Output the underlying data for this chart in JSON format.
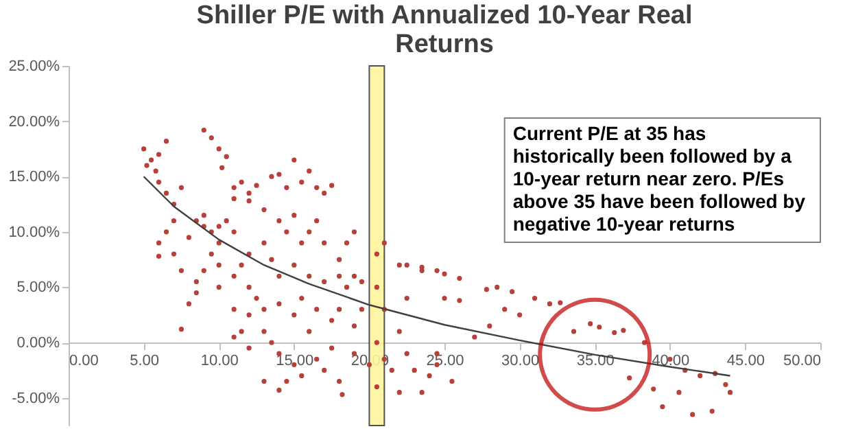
{
  "chart_data": {
    "type": "scatter",
    "title": "Shiller P/E with Annualized 10-Year Real Returns",
    "xlim": [
      0,
      50
    ],
    "xticks": [
      {
        "value": 0,
        "label": "0.00"
      },
      {
        "value": 5,
        "label": "5.00"
      },
      {
        "value": 10,
        "label": "10.00"
      },
      {
        "value": 15,
        "label": "15.00"
      },
      {
        "value": 20,
        "label": "20.00"
      },
      {
        "value": 25,
        "label": "25.00"
      },
      {
        "value": 30,
        "label": "30.00"
      },
      {
        "value": 35,
        "label": "35.00"
      },
      {
        "value": 40,
        "label": "40.00"
      },
      {
        "value": 45,
        "label": "45.00"
      },
      {
        "value": 50,
        "label": "50.00"
      }
    ],
    "ylim": [
      -7.5,
      25
    ],
    "yticks": [
      {
        "value": -5,
        "label": "-5.00%"
      },
      {
        "value": 0,
        "label": "0.00%"
      },
      {
        "value": 5,
        "label": "5.00%"
      },
      {
        "value": 10,
        "label": "10.00%"
      },
      {
        "value": 15,
        "label": "15.00%"
      },
      {
        "value": 20,
        "label": "20.00%"
      },
      {
        "value": 25,
        "label": "25.00%"
      }
    ],
    "grid": false,
    "series": [
      {
        "type": "scatter",
        "marker": "circle",
        "color": "#b5413a",
        "x": [
          5,
          5.2,
          5.5,
          5.8,
          6,
          6.5,
          6,
          6.5,
          7,
          7.5,
          7,
          6.5,
          6,
          6,
          7,
          7.5,
          7.5,
          8,
          8.5,
          8,
          8.5,
          9,
          9,
          9.5,
          10,
          10,
          10.5,
          11,
          9.5,
          10,
          9,
          8.5,
          10,
          11,
          11.5,
          12,
          12,
          11,
          12,
          12.5,
          13,
          11.5,
          11,
          12,
          13,
          9,
          9.5,
          10,
          10.5,
          10.2,
          11,
          11.5,
          12,
          12.5,
          12,
          11,
          13,
          13.5,
          14,
          14.5,
          15,
          15.5,
          16,
          16.5,
          17,
          17.5,
          14,
          14.5,
          15,
          15.5,
          16,
          16.5,
          17,
          13,
          13.5,
          14,
          15,
          16,
          17,
          18,
          18.5,
          19,
          19.5,
          18,
          18.5,
          19,
          18,
          17.5,
          19,
          19.5,
          14,
          15,
          15.5,
          16,
          16.5,
          13.5,
          14,
          15,
          14.5,
          13,
          14,
          15.5,
          16.5,
          17,
          18,
          18.2,
          17.5,
          19,
          20,
          20.5,
          21,
          20.5,
          21,
          20.5,
          21,
          20.5,
          21.5,
          22,
          22.5,
          22,
          22.5,
          23,
          22,
          23.5,
          24,
          24.5,
          22.5,
          23.5,
          24.5,
          25,
          26,
          27.8,
          28.5,
          29.5,
          25,
          26,
          27,
          28,
          29,
          30,
          31,
          32,
          32.7,
          24.5,
          25.5,
          23.5,
          33.6,
          34.7,
          35.3,
          36.3,
          36.9,
          38.3,
          37.3,
          38.9,
          40.6,
          41.5,
          42.8,
          43.7,
          44,
          41,
          42,
          43,
          40,
          39.5
        ],
        "values": [
          17.5,
          16,
          16.5,
          15.5,
          17,
          18.2,
          14.5,
          13.5,
          12.5,
          14,
          11,
          10,
          9,
          7.8,
          8,
          6.5,
          1.2,
          3.5,
          4.5,
          9.5,
          11,
          10.5,
          11.5,
          10,
          10.5,
          9,
          11,
          10,
          8,
          7,
          6.5,
          5.5,
          5,
          6,
          7,
          8,
          5,
          3,
          2.5,
          4,
          3,
          1,
          0.5,
          -0.5,
          1,
          19.2,
          18.5,
          17.5,
          16.8,
          15.8,
          14,
          14.5,
          13.5,
          14.2,
          12.8,
          13,
          12,
          15,
          15.2,
          14,
          16.5,
          14.5,
          15.5,
          14,
          13.5,
          14.2,
          11,
          10,
          11.5,
          9,
          10,
          11,
          9,
          9,
          7.5,
          6,
          7,
          6,
          5.5,
          6,
          5,
          6,
          5.5,
          7.5,
          9,
          10,
          3,
          2,
          1.5,
          3,
          3.5,
          2.5,
          4,
          1,
          3,
          0,
          -1,
          -2,
          -3.5,
          -3.5,
          -4.3,
          -3,
          -1.5,
          -2.5,
          -3.5,
          -4.7,
          -0.5,
          -1,
          -2,
          8,
          9,
          5,
          3,
          0,
          -1.5,
          -4,
          -2.5,
          7,
          4,
          1,
          -1,
          -2.5,
          -4.5,
          6.5,
          -3,
          -1,
          7,
          6.8,
          6.5,
          6.2,
          5.8,
          4.8,
          5,
          4.6,
          4,
          3.8,
          0.5,
          1.5,
          3,
          2.5,
          4,
          3.5,
          3.6,
          -2,
          -3.5,
          -4.5,
          1.0,
          1.7,
          1.4,
          0.9,
          1.1,
          0.0,
          -3.2,
          -4.2,
          -4.5,
          -6.5,
          -6.2,
          -3.8,
          -4.5,
          -2.5,
          -3,
          -2.8,
          -1.5,
          -5.8
        ]
      },
      {
        "type": "line",
        "color": "#404040",
        "x": [
          5,
          7,
          10,
          13,
          16,
          20,
          25,
          30,
          35,
          40,
          44
        ],
        "values": [
          15,
          12.3,
          9.3,
          7,
          5.3,
          3.4,
          1.6,
          0.2,
          -1.1,
          -2.2,
          -3
        ]
      }
    ],
    "bands": [
      {
        "axis": "x",
        "from": 20,
        "to": 21,
        "color": "#fff59d"
      }
    ],
    "annotations": [
      "Current P/E at 35 has historically been followed by a 10-year return near zero. P/Es above 35 have been followed by negative 10-year returns"
    ]
  }
}
